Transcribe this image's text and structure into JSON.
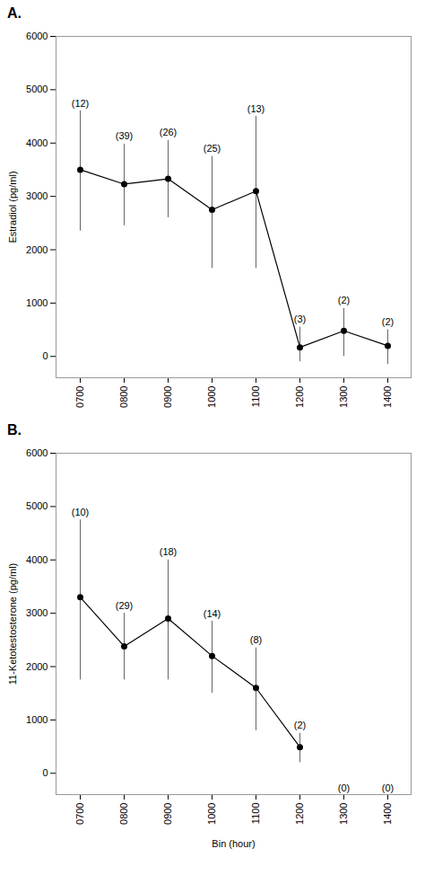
{
  "chart_data": [
    {
      "type": "line",
      "title": "A.",
      "categories": [
        "0700",
        "0800",
        "0900",
        "1000",
        "1100",
        "1200",
        "1300",
        "1400"
      ],
      "values": [
        3500,
        3230,
        3330,
        2750,
        3100,
        170,
        480,
        200
      ],
      "error_bars": {
        "upper": [
          4600,
          3980,
          4050,
          3750,
          4500,
          550,
          900,
          500
        ],
        "lower": [
          2350,
          2450,
          2600,
          1650,
          1650,
          -100,
          0,
          -150
        ],
        "color": "#666666"
      },
      "annotations": [
        "(12)",
        "(39)",
        "(26)",
        "(25)",
        "(13)",
        "(3)",
        "(2)",
        "(2)"
      ],
      "ylabel": "Estradiol (pg/ml)",
      "ylim": [
        -400,
        6000
      ],
      "yticks": [
        0,
        1000,
        2000,
        3000,
        4000,
        5000,
        6000
      ],
      "color": "#000000",
      "marker": "o",
      "line_style": "solid"
    },
    {
      "type": "line",
      "title": "B.",
      "categories": [
        "0700",
        "0800",
        "0900",
        "1000",
        "1100",
        "1200",
        "1300",
        "1400"
      ],
      "values": [
        3300,
        2380,
        2900,
        2200,
        1600,
        490,
        null,
        null
      ],
      "error_bars": {
        "upper": [
          4750,
          3000,
          4000,
          2850,
          2350,
          750,
          null,
          null
        ],
        "lower": [
          1750,
          1750,
          1750,
          1500,
          800,
          200,
          null,
          null
        ],
        "color": "#666666"
      },
      "annotations": [
        "(10)",
        "(29)",
        "(18)",
        "(14)",
        "(8)",
        "(2)",
        "(0)",
        "(0)"
      ],
      "ylabel": "11-Ketotestosterone (pg/ml)",
      "xlabel": "Bin (hour)",
      "ylim": [
        -400,
        6000
      ],
      "yticks": [
        0,
        1000,
        2000,
        3000,
        4000,
        5000,
        6000
      ],
      "color": "#000000",
      "marker": "o",
      "line_style": "solid"
    }
  ]
}
